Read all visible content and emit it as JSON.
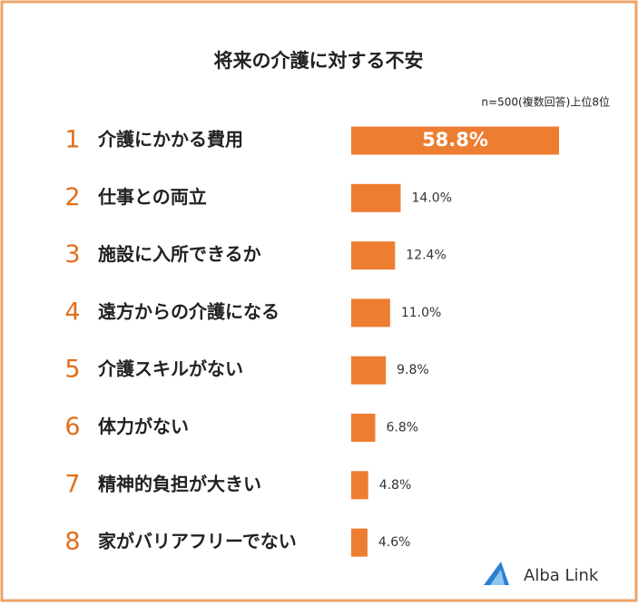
{
  "chart_data": {
    "type": "bar",
    "orientation": "horizontal",
    "title": "将来の介護に対する不安",
    "subtitle": "n=500(複数回答)上位8位",
    "ranks": [
      "1",
      "2",
      "3",
      "4",
      "5",
      "6",
      "7",
      "8"
    ],
    "categories": [
      "介護にかかる費用",
      "仕事との両立",
      "施設に入所できるか",
      "遠方からの介護になる",
      "介護スキルがない",
      "体力がない",
      "精神的負担が大きい",
      "家がバリアフリーでない"
    ],
    "values": [
      58.8,
      14.0,
      12.4,
      11.0,
      9.8,
      6.8,
      4.8,
      4.6
    ],
    "value_labels": [
      "58.8%",
      "14.0%",
      "12.4%",
      "11.0%",
      "9.8%",
      "6.8%",
      "4.8%",
      "4.6%"
    ],
    "color": "#ed7d31",
    "logo": "Alba Link"
  }
}
